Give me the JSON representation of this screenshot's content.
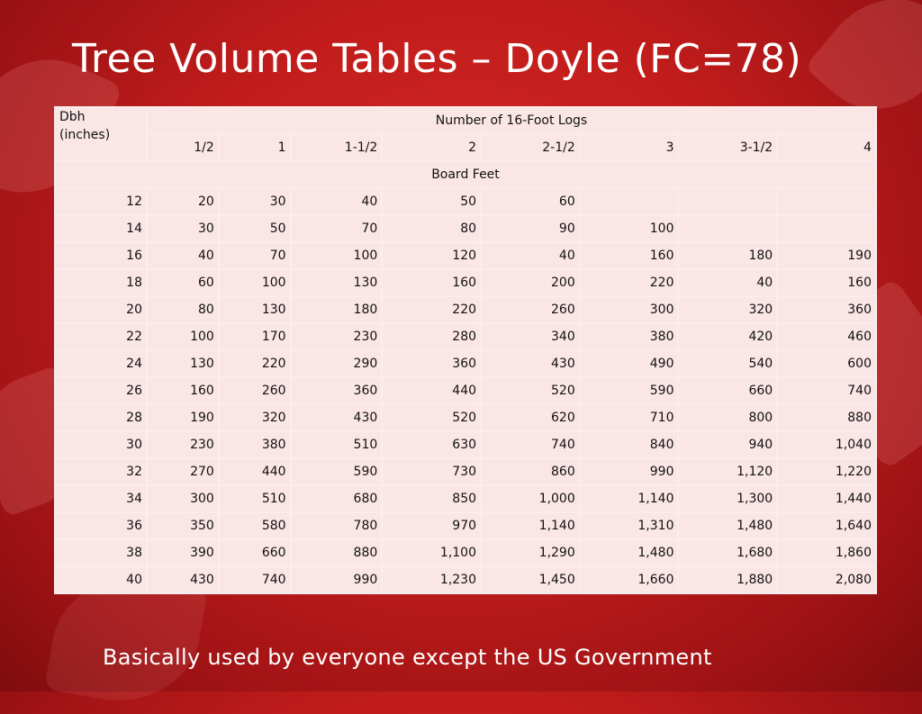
{
  "slide": {
    "title": "Tree Volume Tables – Doyle (FC=78)",
    "footer": "Basically used by everyone except the US Government"
  },
  "table": {
    "dbh_header_line1": "Dbh",
    "dbh_header_line2": "(inches)",
    "logs_header": "Number of 16-Foot Logs",
    "log_columns": [
      "1/2",
      "1",
      "1-1/2",
      "2",
      "2-1/2",
      "3",
      "3-1/2",
      "4"
    ],
    "units_header": "Board Feet",
    "rows": [
      {
        "dbh": "12",
        "values": [
          "20",
          "30",
          "40",
          "50",
          "60",
          "",
          "",
          ""
        ]
      },
      {
        "dbh": "14",
        "values": [
          "30",
          "50",
          "70",
          "80",
          "90",
          "100",
          "",
          ""
        ]
      },
      {
        "dbh": "16",
        "values": [
          "40",
          "70",
          "100",
          "120",
          "40",
          "160",
          "180",
          "190"
        ]
      },
      {
        "dbh": "18",
        "values": [
          "60",
          "100",
          "130",
          "160",
          "200",
          "220",
          "40",
          "160"
        ]
      },
      {
        "dbh": "20",
        "values": [
          "80",
          "130",
          "180",
          "220",
          "260",
          "300",
          "320",
          "360"
        ]
      },
      {
        "dbh": "22",
        "values": [
          "100",
          "170",
          "230",
          "280",
          "340",
          "380",
          "420",
          "460"
        ]
      },
      {
        "dbh": "24",
        "values": [
          "130",
          "220",
          "290",
          "360",
          "430",
          "490",
          "540",
          "600"
        ]
      },
      {
        "dbh": "26",
        "values": [
          "160",
          "260",
          "360",
          "440",
          "520",
          "590",
          "660",
          "740"
        ]
      },
      {
        "dbh": "28",
        "values": [
          "190",
          "320",
          "430",
          "520",
          "620",
          "710",
          "800",
          "880"
        ]
      },
      {
        "dbh": "30",
        "values": [
          "230",
          "380",
          "510",
          "630",
          "740",
          "840",
          "940",
          "1,040"
        ]
      },
      {
        "dbh": "32",
        "values": [
          "270",
          "440",
          "590",
          "730",
          "860",
          "990",
          "1,120",
          "1,220"
        ]
      },
      {
        "dbh": "34",
        "values": [
          "300",
          "510",
          "680",
          "850",
          "1,000",
          "1,140",
          "1,300",
          "1,440"
        ]
      },
      {
        "dbh": "36",
        "values": [
          "350",
          "580",
          "780",
          "970",
          "1,140",
          "1,310",
          "1,480",
          "1,640"
        ]
      },
      {
        "dbh": "38",
        "values": [
          "390",
          "660",
          "880",
          "1,100",
          "1,290",
          "1,480",
          "1,680",
          "1,860"
        ]
      },
      {
        "dbh": "40",
        "values": [
          "430",
          "740",
          "990",
          "1,230",
          "1,450",
          "1,660",
          "1,880",
          "2,080"
        ]
      }
    ]
  }
}
